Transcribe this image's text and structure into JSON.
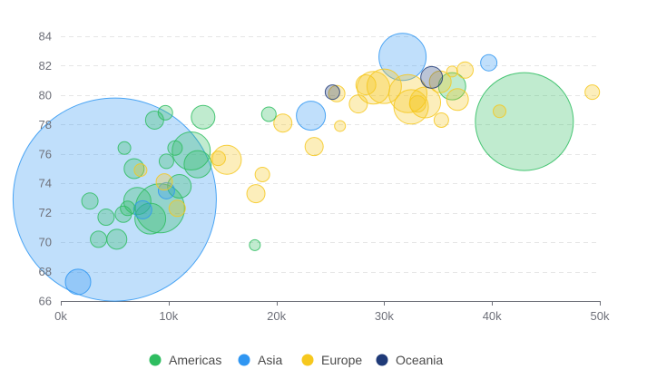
{
  "chart_data": {
    "type": "scatter",
    "xlim": [
      0,
      50000
    ],
    "ylim": [
      66,
      84
    ],
    "x_ticks": [
      0,
      10000,
      20000,
      30000,
      40000,
      50000
    ],
    "x_tick_labels": [
      "0k",
      "10k",
      "20k",
      "30k",
      "40k",
      "50k"
    ],
    "y_ticks": [
      66,
      68,
      70,
      72,
      74,
      76,
      78,
      80,
      82,
      84
    ],
    "y_tick_labels": [
      "66",
      "68",
      "70",
      "72",
      "74",
      "76",
      "78",
      "80",
      "82",
      "84"
    ],
    "grid": "horizontal-dashed",
    "legend_position": "bottom-center",
    "series": [
      {
        "name": "Americas",
        "color": "#2ebd60",
        "points": [
          {
            "x": 43000,
            "y": 78.2,
            "r": 54
          },
          {
            "x": 9200,
            "y": 72.3,
            "r": 27
          },
          {
            "x": 12100,
            "y": 76.2,
            "r": 21
          },
          {
            "x": 8300,
            "y": 71.6,
            "r": 17
          },
          {
            "x": 12700,
            "y": 75.3,
            "r": 15
          },
          {
            "x": 36300,
            "y": 80.6,
            "r": 15
          },
          {
            "x": 7100,
            "y": 72.8,
            "r": 15
          },
          {
            "x": 11000,
            "y": 73.8,
            "r": 13
          },
          {
            "x": 13200,
            "y": 78.5,
            "r": 13
          },
          {
            "x": 6800,
            "y": 75.0,
            "r": 11
          },
          {
            "x": 5200,
            "y": 70.2,
            "r": 11
          },
          {
            "x": 8700,
            "y": 78.3,
            "r": 10
          },
          {
            "x": 2700,
            "y": 72.8,
            "r": 9
          },
          {
            "x": 4200,
            "y": 71.7,
            "r": 9
          },
          {
            "x": 3500,
            "y": 70.2,
            "r": 9
          },
          {
            "x": 5800,
            "y": 71.9,
            "r": 9
          },
          {
            "x": 9800,
            "y": 75.5,
            "r": 8
          },
          {
            "x": 10600,
            "y": 76.4,
            "r": 8
          },
          {
            "x": 19300,
            "y": 78.7,
            "r": 8
          },
          {
            "x": 9700,
            "y": 78.8,
            "r": 8
          },
          {
            "x": 6200,
            "y": 72.3,
            "r": 8
          },
          {
            "x": 5900,
            "y": 76.4,
            "r": 7
          },
          {
            "x": 18000,
            "y": 69.8,
            "r": 6
          }
        ]
      },
      {
        "name": "Asia",
        "color": "#2f96f2",
        "points": [
          {
            "x": 5000,
            "y": 72.9,
            "r": 112
          },
          {
            "x": 1600,
            "y": 67.3,
            "r": 14
          },
          {
            "x": 31700,
            "y": 82.6,
            "r": 26
          },
          {
            "x": 23200,
            "y": 78.6,
            "r": 16
          },
          {
            "x": 39700,
            "y": 82.2,
            "r": 9
          },
          {
            "x": 9800,
            "y": 73.5,
            "r": 9
          },
          {
            "x": 7600,
            "y": 72.2,
            "r": 10
          }
        ]
      },
      {
        "name": "Europe",
        "color": "#f6c81e",
        "points": [
          {
            "x": 32200,
            "y": 80.1,
            "r": 21
          },
          {
            "x": 30000,
            "y": 80.6,
            "r": 19
          },
          {
            "x": 29000,
            "y": 80.5,
            "r": 18
          },
          {
            "x": 33800,
            "y": 79.5,
            "r": 17
          },
          {
            "x": 32500,
            "y": 79.2,
            "r": 19
          },
          {
            "x": 35200,
            "y": 80.9,
            "r": 12
          },
          {
            "x": 36800,
            "y": 79.7,
            "r": 12
          },
          {
            "x": 15400,
            "y": 75.6,
            "r": 16
          },
          {
            "x": 27600,
            "y": 79.4,
            "r": 10
          },
          {
            "x": 28300,
            "y": 80.7,
            "r": 11
          },
          {
            "x": 25600,
            "y": 80.1,
            "r": 9
          },
          {
            "x": 33100,
            "y": 79.4,
            "r": 9
          },
          {
            "x": 37500,
            "y": 81.7,
            "r": 9
          },
          {
            "x": 20600,
            "y": 78.1,
            "r": 10
          },
          {
            "x": 23500,
            "y": 76.5,
            "r": 10
          },
          {
            "x": 18100,
            "y": 73.3,
            "r": 10
          },
          {
            "x": 18700,
            "y": 74.6,
            "r": 8
          },
          {
            "x": 14600,
            "y": 75.7,
            "r": 8
          },
          {
            "x": 35300,
            "y": 78.3,
            "r": 8
          },
          {
            "x": 40700,
            "y": 78.9,
            "r": 7
          },
          {
            "x": 49300,
            "y": 80.2,
            "r": 8
          },
          {
            "x": 25900,
            "y": 77.9,
            "r": 6
          },
          {
            "x": 36300,
            "y": 81.6,
            "r": 6
          },
          {
            "x": 10800,
            "y": 72.3,
            "r": 9
          },
          {
            "x": 7400,
            "y": 74.9,
            "r": 7
          },
          {
            "x": 9600,
            "y": 74.1,
            "r": 9
          }
        ]
      },
      {
        "name": "Oceania",
        "color": "#1f3a78",
        "points": [
          {
            "x": 34400,
            "y": 81.2,
            "r": 12
          },
          {
            "x": 25200,
            "y": 80.2,
            "r": 8
          }
        ]
      }
    ]
  }
}
